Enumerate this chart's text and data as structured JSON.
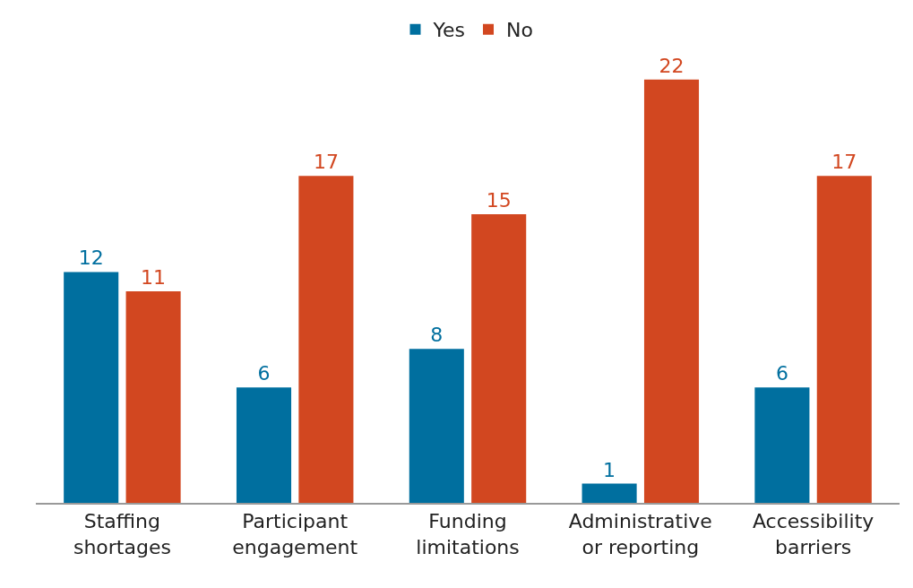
{
  "chart_data": {
    "type": "bar",
    "categories": [
      "Staffing\nshortages",
      "Participant\nengagement",
      "Funding\nlimitations",
      "Administrative\nor reporting",
      "Accessibility\nbarriers"
    ],
    "series": [
      {
        "name": "Yes",
        "color": "#006f9f",
        "values": [
          12,
          6,
          8,
          1,
          6
        ]
      },
      {
        "name": "No",
        "color": "#d24720",
        "values": [
          11,
          17,
          15,
          22,
          17
        ]
      }
    ],
    "data_labels": true,
    "legend": "top",
    "grid": false
  }
}
